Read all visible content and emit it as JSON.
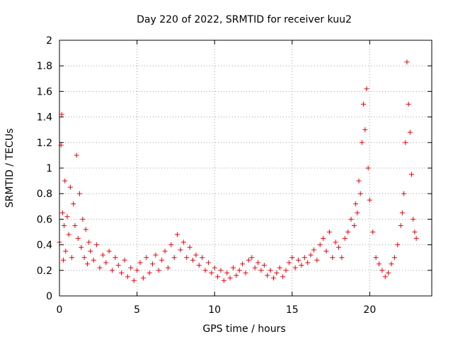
{
  "chart_data": {
    "type": "scatter",
    "title": "Day 220 of 2022, SRMTID for receiver kuu2",
    "xlabel": "GPS time / hours",
    "ylabel": "SRMTID / TECUs",
    "xlim": [
      0,
      24
    ],
    "ylim": [
      0,
      2
    ],
    "xticks": [
      0,
      5,
      10,
      15,
      20
    ],
    "xtick_labels": [
      "0",
      "5",
      "10",
      "15",
      "20"
    ],
    "yticks": [
      0,
      0.2,
      0.4,
      0.6,
      0.8,
      1.0,
      1.2,
      1.4,
      1.6,
      1.8,
      2.0
    ],
    "ytick_labels": [
      "0",
      "0.2",
      "0.4",
      "0.6",
      "0.8",
      "1",
      "1.2",
      "1.4",
      "1.6",
      "1.8",
      "2"
    ],
    "grid": true,
    "marker": "+",
    "color": "#e8000b",
    "series": [
      {
        "name": "SRMTID",
        "x": [
          0.0,
          0.1,
          0.15,
          0.2,
          0.25,
          0.3,
          0.35,
          0.4,
          0.5,
          0.6,
          0.7,
          0.8,
          0.9,
          1.0,
          1.1,
          1.2,
          1.3,
          1.4,
          1.5,
          1.6,
          1.7,
          1.8,
          1.9,
          2.0,
          2.2,
          2.4,
          2.6,
          2.8,
          3.0,
          3.2,
          3.4,
          3.6,
          3.8,
          4.0,
          4.2,
          4.4,
          4.6,
          4.8,
          5.0,
          5.2,
          5.4,
          5.6,
          5.8,
          6.0,
          6.2,
          6.4,
          6.6,
          6.8,
          7.0,
          7.2,
          7.4,
          7.6,
          7.8,
          8.0,
          8.2,
          8.4,
          8.6,
          8.8,
          9.0,
          9.2,
          9.4,
          9.6,
          9.8,
          10.0,
          10.2,
          10.4,
          10.6,
          10.8,
          11.0,
          11.2,
          11.4,
          11.6,
          11.8,
          12.0,
          12.2,
          12.4,
          12.6,
          12.8,
          13.0,
          13.2,
          13.4,
          13.6,
          13.8,
          14.0,
          14.2,
          14.4,
          14.6,
          14.8,
          15.0,
          15.2,
          15.4,
          15.6,
          15.8,
          16.0,
          16.2,
          16.4,
          16.6,
          16.8,
          17.0,
          17.2,
          17.4,
          17.6,
          17.8,
          18.0,
          18.2,
          18.4,
          18.6,
          18.8,
          19.0,
          19.1,
          19.2,
          19.3,
          19.4,
          19.5,
          19.6,
          19.7,
          19.8,
          19.9,
          20.0,
          20.2,
          20.4,
          20.6,
          20.8,
          21.0,
          21.2,
          21.4,
          21.6,
          21.8,
          22.0,
          22.1,
          22.2,
          22.3,
          22.4,
          22.5,
          22.6,
          22.7,
          22.8,
          22.9,
          23.0
        ],
        "y": [
          0.42,
          1.18,
          1.42,
          0.65,
          0.28,
          0.55,
          0.9,
          0.35,
          0.62,
          0.48,
          0.85,
          0.3,
          0.72,
          0.55,
          1.1,
          0.45,
          0.8,
          0.38,
          0.6,
          0.3,
          0.52,
          0.25,
          0.42,
          0.35,
          0.28,
          0.4,
          0.22,
          0.32,
          0.26,
          0.35,
          0.2,
          0.3,
          0.24,
          0.18,
          0.28,
          0.15,
          0.22,
          0.12,
          0.2,
          0.26,
          0.14,
          0.3,
          0.18,
          0.25,
          0.32,
          0.2,
          0.28,
          0.35,
          0.22,
          0.4,
          0.3,
          0.48,
          0.36,
          0.42,
          0.3,
          0.38,
          0.28,
          0.32,
          0.24,
          0.3,
          0.2,
          0.26,
          0.18,
          0.22,
          0.15,
          0.2,
          0.12,
          0.18,
          0.14,
          0.22,
          0.16,
          0.2,
          0.25,
          0.18,
          0.28,
          0.3,
          0.22,
          0.26,
          0.2,
          0.24,
          0.16,
          0.2,
          0.14,
          0.18,
          0.22,
          0.15,
          0.2,
          0.26,
          0.3,
          0.22,
          0.28,
          0.24,
          0.3,
          0.26,
          0.32,
          0.36,
          0.28,
          0.4,
          0.45,
          0.35,
          0.5,
          0.3,
          0.42,
          0.38,
          0.3,
          0.45,
          0.5,
          0.6,
          0.55,
          0.72,
          0.65,
          0.9,
          0.8,
          1.2,
          1.5,
          1.3,
          1.62,
          1.0,
          0.75,
          0.5,
          0.3,
          0.25,
          0.2,
          0.15,
          0.18,
          0.25,
          0.3,
          0.4,
          0.55,
          0.65,
          0.8,
          1.2,
          1.83,
          1.5,
          1.28,
          0.95,
          0.6,
          0.5,
          0.45
        ]
      }
    ]
  }
}
